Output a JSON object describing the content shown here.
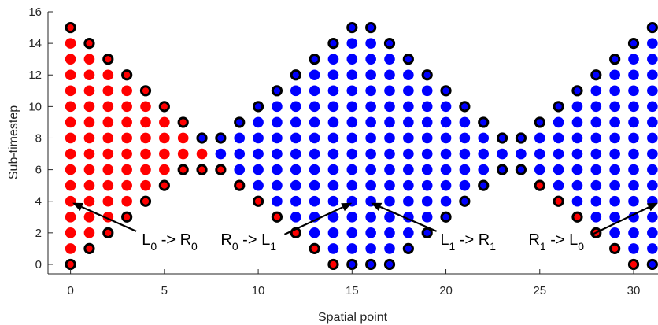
{
  "chart_data": {
    "type": "scatter",
    "title": "",
    "xlabel": "Spatial point",
    "ylabel": "Sub-timestep",
    "xlim": [
      -1.2,
      31.3
    ],
    "ylim": [
      -0.6,
      16
    ],
    "xticks": [
      0,
      5,
      10,
      15,
      20,
      25,
      30
    ],
    "yticks": [
      0,
      2,
      4,
      6,
      8,
      10,
      12,
      14,
      16
    ],
    "grid": false,
    "legend": "none",
    "x_range": [
      0,
      31
    ],
    "ring_color": "#000000",
    "colors": {
      "red": "#ff0000",
      "blue": "#0000ff",
      "arrow": "#000000"
    },
    "columns": [
      {
        "x": 0,
        "y_min": 0,
        "y_max": 15,
        "color_switch_y": null
      },
      {
        "x": 1,
        "y_min": 1,
        "y_max": 14,
        "color_switch_y": null
      },
      {
        "x": 2,
        "y_min": 2,
        "y_max": 13,
        "color_switch_y": null
      },
      {
        "x": 3,
        "y_min": 3,
        "y_max": 12,
        "color_switch_y": null
      },
      {
        "x": 4,
        "y_min": 4,
        "y_max": 11,
        "color_switch_y": null
      },
      {
        "x": 5,
        "y_min": 5,
        "y_max": 10,
        "color_switch_y": null
      },
      {
        "x": 6,
        "y_min": 6,
        "y_max": 9,
        "color_switch_y": null
      },
      {
        "x": 7,
        "y_min": 6,
        "y_max": 8,
        "color_switch_y": 7.5
      },
      {
        "x": 8,
        "y_min": 6,
        "y_max": 8,
        "color_switch_y": 6.5
      },
      {
        "x": 9,
        "y_min": 5,
        "y_max": 9,
        "color_switch_y": 5.5
      },
      {
        "x": 10,
        "y_min": 4,
        "y_max": 10,
        "color_switch_y": 4.5
      },
      {
        "x": 11,
        "y_min": 3,
        "y_max": 11,
        "color_switch_y": 3.5
      },
      {
        "x": 12,
        "y_min": 2,
        "y_max": 12,
        "color_switch_y": 2.5
      },
      {
        "x": 13,
        "y_min": 1,
        "y_max": 13,
        "color_switch_y": 1.5
      },
      {
        "x": 14,
        "y_min": 0,
        "y_max": 14,
        "color_switch_y": 0.5
      },
      {
        "x": 15,
        "y_min": 0,
        "y_max": 15,
        "color_switch_y": -0.5
      },
      {
        "x": 16,
        "y_min": 0,
        "y_max": 15,
        "color_switch_y": -0.5
      },
      {
        "x": 17,
        "y_min": 0,
        "y_max": 14,
        "color_switch_y": -0.5
      },
      {
        "x": 18,
        "y_min": 1,
        "y_max": 13,
        "color_switch_y": -0.5
      },
      {
        "x": 19,
        "y_min": 2,
        "y_max": 12,
        "color_switch_y": -0.5
      },
      {
        "x": 20,
        "y_min": 3,
        "y_max": 11,
        "color_switch_y": -0.5
      },
      {
        "x": 21,
        "y_min": 4,
        "y_max": 10,
        "color_switch_y": -0.5
      },
      {
        "x": 22,
        "y_min": 5,
        "y_max": 9,
        "color_switch_y": -0.5
      },
      {
        "x": 23,
        "y_min": 6,
        "y_max": 8,
        "color_switch_y": -0.5
      },
      {
        "x": 24,
        "y_min": 6,
        "y_max": 8,
        "color_switch_y": -0.5
      },
      {
        "x": 25,
        "y_min": 5,
        "y_max": 9,
        "color_switch_y": 5.5
      },
      {
        "x": 26,
        "y_min": 4,
        "y_max": 10,
        "color_switch_y": 4.5
      },
      {
        "x": 27,
        "y_min": 3,
        "y_max": 11,
        "color_switch_y": 3.5
      },
      {
        "x": 28,
        "y_min": 2,
        "y_max": 12,
        "color_switch_y": 2.5
      },
      {
        "x": 29,
        "y_min": 1,
        "y_max": 13,
        "color_switch_y": 1.5
      },
      {
        "x": 30,
        "y_min": 0,
        "y_max": 14,
        "color_switch_y": 0.5
      },
      {
        "x": 31,
        "y_min": 0,
        "y_max": 15,
        "color_switch_y": -0.5
      }
    ],
    "annotations": [
      {
        "main": "L",
        "sub1": "0",
        "mid": " -> R",
        "sub2": "0",
        "x": 3.8,
        "y": 1.6,
        "arrow_tail": [
          3.5,
          2.1
        ],
        "arrow_head": [
          0.1,
          3.9
        ]
      },
      {
        "main": "R",
        "sub1": "0",
        "mid": " -> L",
        "sub2": "1",
        "x": 8.0,
        "y": 1.6,
        "arrow_tail": [
          11.4,
          1.9
        ],
        "arrow_head": [
          15.0,
          3.9
        ]
      },
      {
        "main": "L",
        "sub1": "1",
        "mid": " -> R",
        "sub2": "1",
        "x": 19.7,
        "y": 1.6,
        "arrow_tail": [
          19.5,
          2.1
        ],
        "arrow_head": [
          16.0,
          3.9
        ]
      },
      {
        "main": "R",
        "sub1": "1",
        "mid": " -> L",
        "sub2": "0",
        "x": 24.4,
        "y": 1.6,
        "arrow_tail": [
          27.8,
          1.9
        ],
        "arrow_head": [
          31.3,
          3.9
        ]
      }
    ]
  }
}
